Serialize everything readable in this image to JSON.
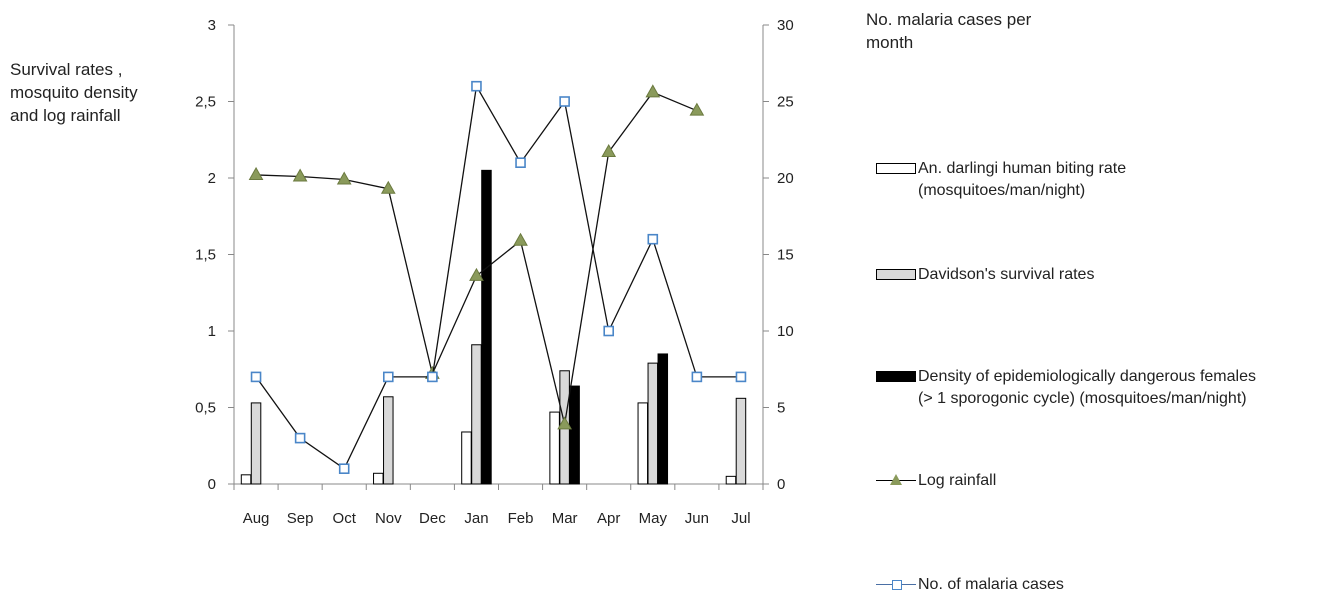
{
  "chart_data": {
    "type": "bar",
    "categories": [
      "Aug",
      "Sep",
      "Oct",
      "Nov",
      "Dec",
      "Jan",
      "Feb",
      "Mar",
      "Apr",
      "May",
      "Jun",
      "Jul"
    ],
    "ylabel_left": "Survival rates , mosquito density and log rainfall",
    "ylabel_right": "No. malaria cases per month",
    "ylim_left": [
      0,
      3
    ],
    "ylim_right": [
      0,
      30
    ],
    "yticks_left": [
      "0",
      "0,5",
      "1",
      "1,5",
      "2",
      "2,5",
      "3"
    ],
    "yticks_right": [
      "0",
      "5",
      "10",
      "15",
      "20",
      "25",
      "30"
    ],
    "series": [
      {
        "name": "An. darlingi human biting rate\n(mosquitoes/man/night)",
        "kind": "bar",
        "axis": "left",
        "color": "#ffffff",
        "values": [
          0.06,
          null,
          null,
          0.07,
          null,
          0.34,
          null,
          0.47,
          null,
          0.53,
          null,
          0.05
        ]
      },
      {
        "name": "Davidson's survival rates",
        "kind": "bar",
        "axis": "left",
        "color": "#d9d9d9",
        "values": [
          0.53,
          null,
          null,
          0.57,
          null,
          0.91,
          null,
          0.74,
          null,
          0.79,
          null,
          0.56
        ]
      },
      {
        "name": "Density of epidemiologically dangerous females\n(> 1 sporogonic cycle) (mosquitoes/man/night)",
        "kind": "bar",
        "axis": "left",
        "color": "#000000",
        "values": [
          null,
          null,
          null,
          null,
          null,
          2.05,
          null,
          0.64,
          null,
          0.85,
          null,
          null
        ]
      },
      {
        "name": "Log rainfall",
        "kind": "line",
        "axis": "left",
        "color": "#8a9a5b",
        "marker": "triangle",
        "values": [
          2.02,
          2.01,
          1.99,
          1.93,
          0.72,
          1.36,
          1.59,
          0.39,
          2.17,
          2.56,
          2.44,
          null
        ]
      },
      {
        "name": "No. of malaria cases",
        "kind": "line",
        "axis": "right",
        "color": "#4a86c8",
        "marker": "square",
        "values": [
          7,
          3,
          1,
          7,
          7,
          26,
          21,
          25,
          10,
          16,
          7,
          7
        ]
      }
    ]
  }
}
